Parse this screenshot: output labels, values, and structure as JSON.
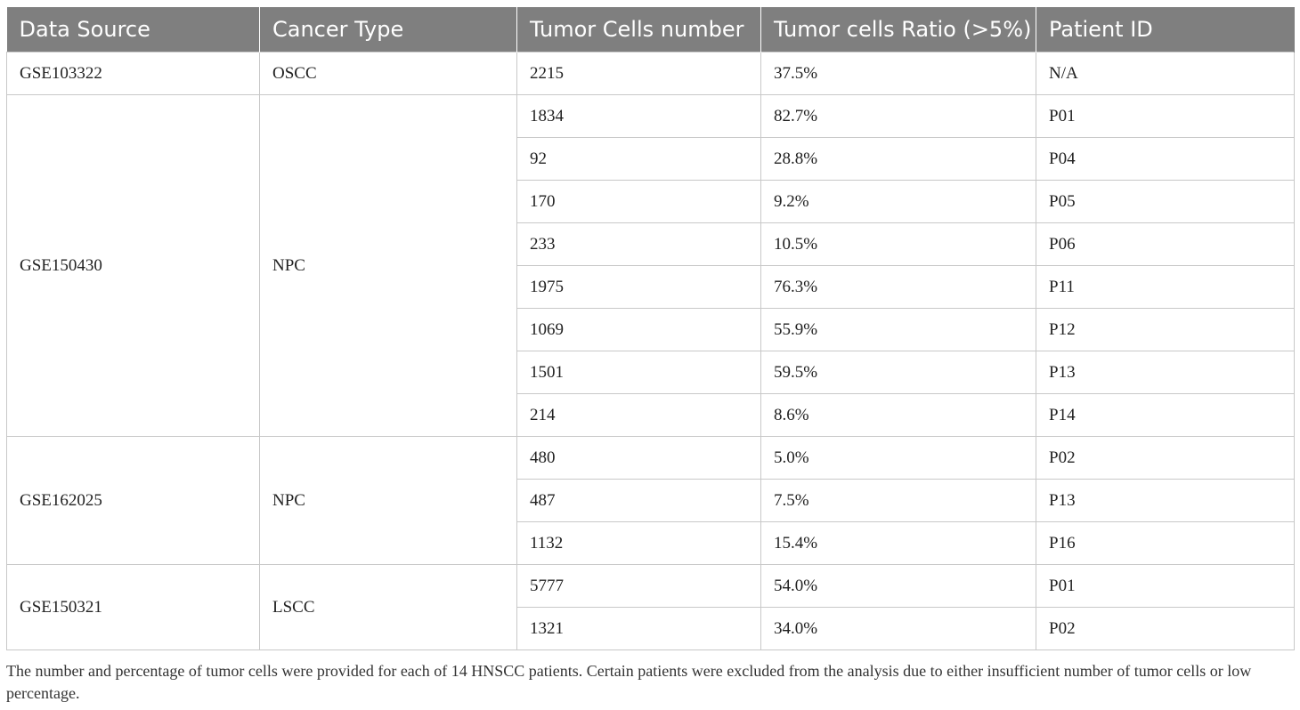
{
  "table": {
    "headers": [
      "Data Source",
      "Cancer Type",
      "Tumor Cells number",
      "Tumor cells Ratio (>5%)",
      "Patient ID"
    ],
    "groups": [
      {
        "source": "GSE103322",
        "cancer_type": "OSCC",
        "rows": [
          {
            "cells": "2215",
            "ratio": "37.5%",
            "patient": "N/A"
          }
        ]
      },
      {
        "source": "GSE150430",
        "cancer_type": "NPC",
        "rows": [
          {
            "cells": "1834",
            "ratio": "82.7%",
            "patient": "P01"
          },
          {
            "cells": "92",
            "ratio": "28.8%",
            "patient": "P04"
          },
          {
            "cells": "170",
            "ratio": "9.2%",
            "patient": "P05"
          },
          {
            "cells": "233",
            "ratio": "10.5%",
            "patient": "P06"
          },
          {
            "cells": "1975",
            "ratio": "76.3%",
            "patient": "P11"
          },
          {
            "cells": "1069",
            "ratio": "55.9%",
            "patient": "P12"
          },
          {
            "cells": "1501",
            "ratio": "59.5%",
            "patient": "P13"
          },
          {
            "cells": "214",
            "ratio": "8.6%",
            "patient": "P14"
          }
        ]
      },
      {
        "source": "GSE162025",
        "cancer_type": "NPC",
        "rows": [
          {
            "cells": "480",
            "ratio": "5.0%",
            "patient": "P02"
          },
          {
            "cells": "487",
            "ratio": "7.5%",
            "patient": "P13"
          },
          {
            "cells": "1132",
            "ratio": "15.4%",
            "patient": "P16"
          }
        ]
      },
      {
        "source": "GSE150321",
        "cancer_type": "LSCC",
        "rows": [
          {
            "cells": "5777",
            "ratio": "54.0%",
            "patient": "P01"
          },
          {
            "cells": "1321",
            "ratio": "34.0%",
            "patient": "P02"
          }
        ]
      }
    ]
  },
  "footnote": "The number and percentage of tumor cells were provided for each of 14 HNSCC patients. Certain patients were excluded from the analysis due to either insufficient number of tumor cells or low percentage."
}
